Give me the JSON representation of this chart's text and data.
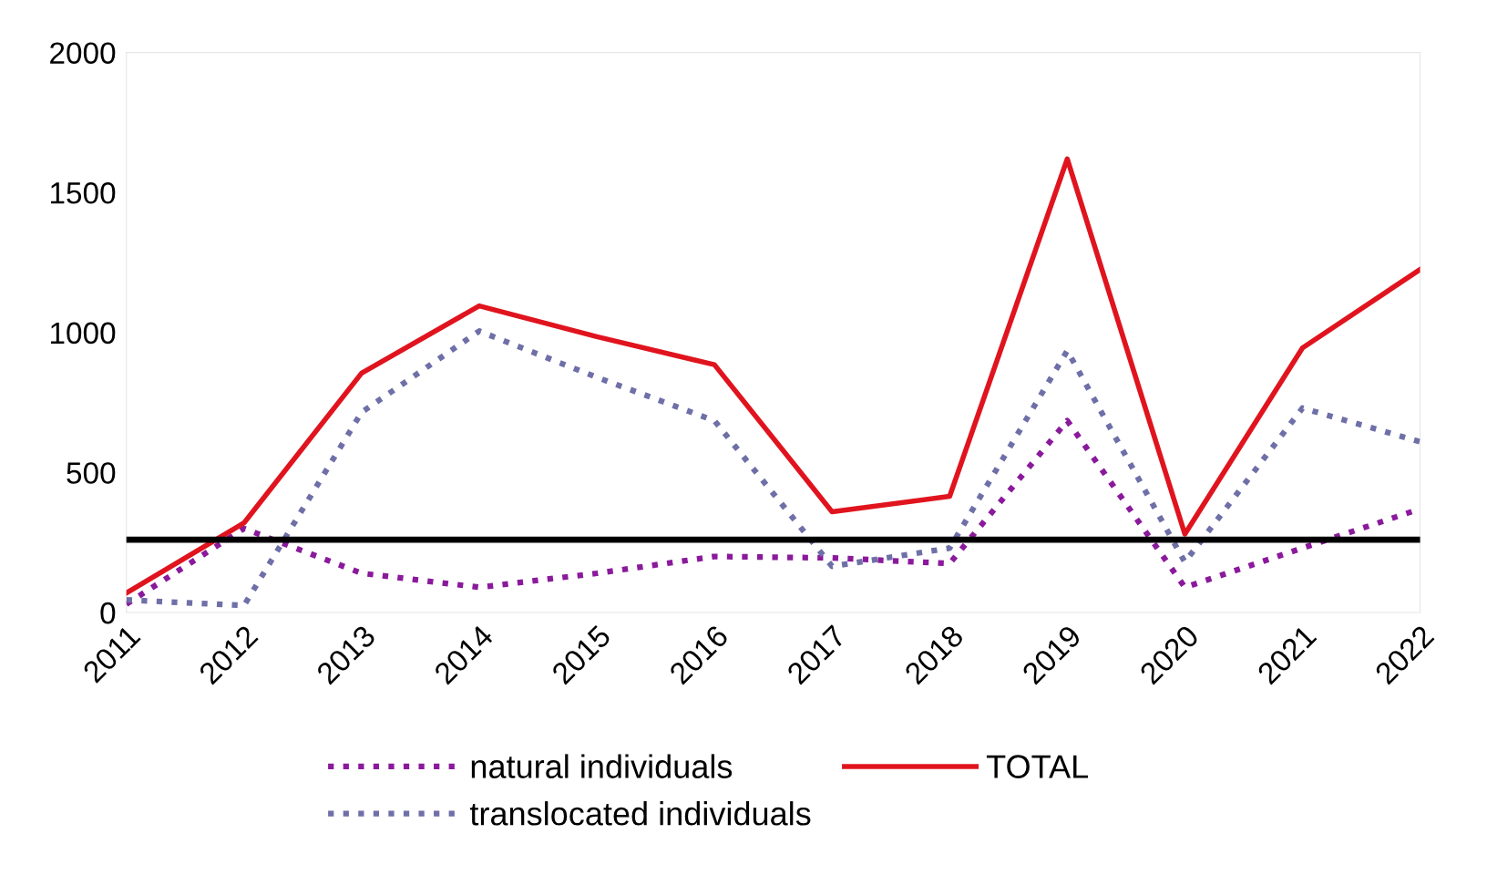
{
  "chart_data": {
    "type": "line",
    "categories": [
      "2011",
      "2012",
      "2013",
      "2014",
      "2015",
      "2016",
      "2017",
      "2018",
      "2019",
      "2020",
      "2021",
      "2022"
    ],
    "series": [
      {
        "name": "natural individuals",
        "color": "#8a1a9b",
        "line_style": "dotted",
        "values": [
          30,
          300,
          140,
          90,
          140,
          200,
          195,
          175,
          685,
          90,
          230,
          370
        ]
      },
      {
        "name": "translocated individuals",
        "color": "#6f6fa8",
        "line_style": "dotted",
        "values": [
          45,
          25,
          715,
          1005,
          840,
          685,
          165,
          230,
          935,
          180,
          730,
          610
        ]
      },
      {
        "name": "TOTAL",
        "color": "#e0141e",
        "line_style": "solid",
        "values": [
          70,
          320,
          855,
          1095,
          985,
          885,
          360,
          415,
          1620,
          280,
          945,
          1225
        ]
      }
    ],
    "ylim": [
      0,
      2000
    ],
    "yticks": [
      0,
      500,
      1000,
      1500,
      2000
    ],
    "grid": false,
    "legend": "bottom",
    "marker": "none",
    "ref_lines": [
      {
        "axis": "y",
        "value": 260,
        "color": "#000000",
        "line_style": "solid"
      }
    ]
  }
}
